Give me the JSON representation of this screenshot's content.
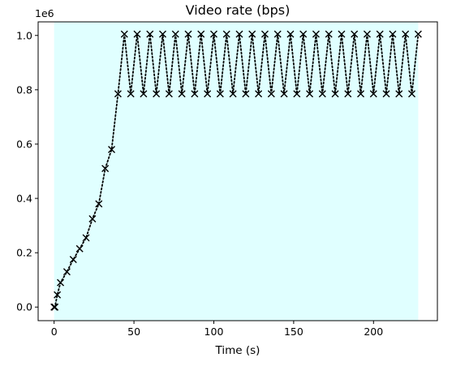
{
  "chart_data": {
    "type": "line",
    "title": "Video rate (bps)",
    "xlabel": "Time (s)",
    "ylabel": "",
    "offset_text": "1e6",
    "xlim": [
      -10,
      240
    ],
    "ylim": [
      -0.05,
      1.05
    ],
    "xticks": [
      0,
      50,
      100,
      150,
      200
    ],
    "yticks": [
      0.0,
      0.2,
      0.4,
      0.6,
      0.8,
      1.0
    ],
    "ytick_labels": [
      "0.0",
      "0.2",
      "0.4",
      "0.6",
      "0.8",
      "1.0"
    ],
    "shaded_span": {
      "x": [
        0,
        228
      ],
      "color": "#e0ffff"
    },
    "line_color": "#000000",
    "line_style": "dotted",
    "marker": "x",
    "grid": false,
    "x": [
      0,
      0.5,
      2,
      4,
      8,
      12,
      16,
      20,
      24,
      28,
      32,
      36,
      40,
      44,
      48,
      52,
      56,
      60,
      64,
      68,
      72,
      76,
      80,
      84,
      88,
      92,
      96,
      100,
      104,
      108,
      112,
      116,
      120,
      124,
      128,
      132,
      136,
      140,
      144,
      148,
      152,
      156,
      160,
      164,
      168,
      172,
      176,
      180,
      184,
      188,
      192,
      196,
      200,
      204,
      208,
      212,
      216,
      220,
      224,
      228
    ],
    "values": [
      0.0,
      0.0,
      0.045,
      0.09,
      0.13,
      0.175,
      0.215,
      0.255,
      0.325,
      0.38,
      0.51,
      0.58,
      0.785,
      1.005,
      0.785,
      1.005,
      0.785,
      1.005,
      0.785,
      1.005,
      0.785,
      1.005,
      0.785,
      1.005,
      0.785,
      1.005,
      0.785,
      1.005,
      0.785,
      1.005,
      0.785,
      1.005,
      0.785,
      1.005,
      0.785,
      1.005,
      0.785,
      1.005,
      0.785,
      1.005,
      0.785,
      1.005,
      0.785,
      1.005,
      0.785,
      1.005,
      0.785,
      1.005,
      0.785,
      1.005,
      0.785,
      1.005,
      0.785,
      1.005,
      0.785,
      1.005,
      0.785,
      1.005,
      0.785,
      1.005
    ]
  }
}
